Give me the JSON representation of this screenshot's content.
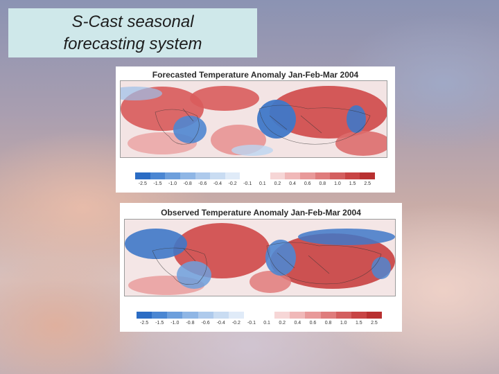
{
  "slide": {
    "title_line1": "S-Cast seasonal",
    "title_line2": "forecasting system"
  },
  "forecast_panel": {
    "title": "Forecasted Temperature Anomaly Jan-Feb-Mar 2004",
    "legend_labels": [
      "-2.5",
      "-1.5",
      "-1.0",
      "-0.8",
      "-0.6",
      "-0.4",
      "-0.2",
      "-0.1",
      "0.1",
      "0.2",
      "0.4",
      "0.6",
      "0.8",
      "1.0",
      "1.5",
      "2.5"
    ]
  },
  "observed_panel": {
    "title": "Observed Temperature Anomaly Jan-Feb-Mar 2004",
    "legend_labels": [
      "-2.5",
      "-1.5",
      "-1.0",
      "-0.8",
      "-0.6",
      "-0.4",
      "-0.2",
      "-0.1",
      "0.1",
      "0.2",
      "0.4",
      "0.6",
      "0.8",
      "1.0",
      "1.5",
      "2.5"
    ]
  },
  "colors": {
    "legend_scale": [
      "#2b6cc4",
      "#4a86d2",
      "#6d9fdc",
      "#8fb6e5",
      "#aecaec",
      "#c9dcf2",
      "#e0ebf8",
      "#ffffff",
      "#ffffff",
      "#f6d6d6",
      "#f0b8b8",
      "#e89999",
      "#df7c7c",
      "#d35f5f",
      "#c84444",
      "#b83030"
    ],
    "warm": "#cf4a4a",
    "cool": "#4f86d0"
  }
}
